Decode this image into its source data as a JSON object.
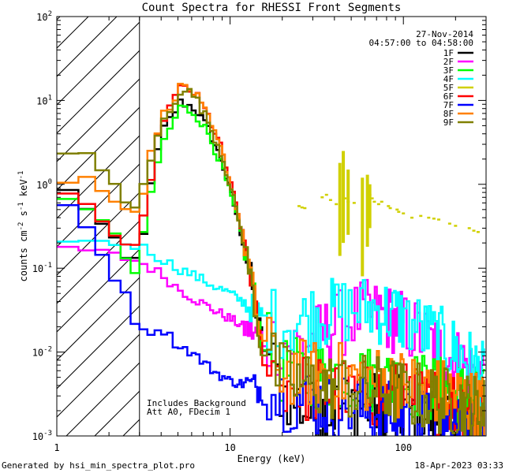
{
  "chart_data": {
    "type": "line",
    "title": "Count Spectra for RHESSI Front Segments",
    "xlabel": "Energy (keV)",
    "ylabel_parts": [
      "counts cm",
      "-2",
      " s",
      "-1",
      " keV",
      "-1"
    ],
    "xscale": "log",
    "yscale": "log",
    "xlim": [
      1,
      300
    ],
    "ylim": [
      0.001,
      100
    ],
    "x_ticks": [
      1,
      10,
      100
    ],
    "x_tick_labels": [
      "1",
      "10",
      "100"
    ],
    "y_ticks": [
      0.001,
      0.01,
      0.1,
      1,
      10,
      100
    ],
    "y_tick_labels": [
      {
        "base": "10",
        "exp": "-3"
      },
      {
        "base": "10",
        "exp": "-2"
      },
      {
        "base": "10",
        "exp": "-1"
      },
      {
        "base": "10",
        "exp": "0"
      },
      {
        "base": "10",
        "exp": "1"
      },
      {
        "base": "10",
        "exp": "2"
      }
    ],
    "hatched_region_kev": [
      1,
      3
    ],
    "date": "27-Nov-2014",
    "time_range": "04:57:00 to 04:58:00",
    "legend_position": "top-right",
    "annotations": [
      "Includes Background",
      "Att A0, FDecim 1"
    ],
    "footer_left": "Generated by hsi_min_spectra_plot.pro",
    "footer_right": "18-Apr-2023 03:33",
    "series": [
      {
        "name": "1F",
        "color": "#000000",
        "anchors": [
          [
            1.2,
            0.82
          ],
          [
            1.5,
            0.53
          ],
          [
            2.0,
            0.26
          ],
          [
            2.6,
            0.11
          ],
          [
            3.0,
            0.14
          ],
          [
            3.3,
            0.5
          ],
          [
            4.0,
            4.0
          ],
          [
            5.2,
            9.7
          ],
          [
            6.3,
            8.0
          ],
          [
            7.5,
            4.5
          ],
          [
            9,
            1.8
          ],
          [
            11,
            0.4
          ],
          [
            13,
            0.09
          ],
          [
            15,
            0.016
          ],
          [
            20,
            0.0035
          ],
          [
            30,
            0.0018
          ],
          [
            50,
            0.0024
          ],
          [
            80,
            0.0022
          ],
          [
            120,
            0.0018
          ],
          [
            200,
            0.0015
          ],
          [
            280,
            0.0012
          ]
        ]
      },
      {
        "name": "2F",
        "color": "#ff00ff",
        "anchors": [
          [
            1.2,
            0.17
          ],
          [
            1.6,
            0.16
          ],
          [
            2.2,
            0.14
          ],
          [
            3.0,
            0.12
          ],
          [
            4.0,
            0.085
          ],
          [
            5,
            0.058
          ],
          [
            6,
            0.045
          ],
          [
            8,
            0.032
          ],
          [
            10,
            0.025
          ],
          [
            13,
            0.018
          ],
          [
            16,
            0.014
          ],
          [
            20,
            0.013
          ],
          [
            25,
            0.012
          ],
          [
            30,
            0.014
          ],
          [
            40,
            0.02
          ],
          [
            55,
            0.028
          ],
          [
            70,
            0.028
          ],
          [
            90,
            0.024
          ],
          [
            120,
            0.017
          ],
          [
            160,
            0.011
          ],
          [
            220,
            0.007
          ],
          [
            290,
            0.004
          ]
        ]
      },
      {
        "name": "3F",
        "color": "#00ff00",
        "anchors": [
          [
            1.2,
            0.72
          ],
          [
            1.6,
            0.5
          ],
          [
            2.2,
            0.22
          ],
          [
            2.8,
            0.085
          ],
          [
            3.0,
            0.11
          ],
          [
            3.3,
            0.45
          ],
          [
            4.0,
            2.8
          ],
          [
            5.2,
            8.5
          ],
          [
            6.3,
            7.0
          ],
          [
            7.5,
            4.0
          ],
          [
            9,
            1.6
          ],
          [
            11,
            0.38
          ],
          [
            13,
            0.1
          ],
          [
            15,
            0.017
          ],
          [
            20,
            0.006
          ],
          [
            30,
            0.0055
          ],
          [
            50,
            0.005
          ],
          [
            80,
            0.0045
          ],
          [
            120,
            0.004
          ],
          [
            200,
            0.0032
          ],
          [
            290,
            0.0025
          ]
        ]
      },
      {
        "name": "4F",
        "color": "#00ffff",
        "anchors": [
          [
            1.2,
            0.23
          ],
          [
            1.6,
            0.2
          ],
          [
            2.2,
            0.2
          ],
          [
            3.0,
            0.185
          ],
          [
            4,
            0.13
          ],
          [
            5,
            0.1
          ],
          [
            6,
            0.085
          ],
          [
            8,
            0.062
          ],
          [
            10,
            0.05
          ],
          [
            13,
            0.035
          ],
          [
            16,
            0.025
          ],
          [
            20,
            0.022
          ],
          [
            25,
            0.023
          ],
          [
            30,
            0.027
          ],
          [
            40,
            0.03
          ],
          [
            55,
            0.033
          ],
          [
            70,
            0.032
          ],
          [
            90,
            0.028
          ],
          [
            120,
            0.02
          ],
          [
            160,
            0.014
          ],
          [
            220,
            0.009
          ],
          [
            290,
            0.005
          ]
        ]
      },
      {
        "name": "6F",
        "color": "#ff0000",
        "anchors": [
          [
            1.2,
            0.85
          ],
          [
            1.5,
            0.55
          ],
          [
            2.0,
            0.3
          ],
          [
            2.6,
            0.15
          ],
          [
            3.0,
            0.18
          ],
          [
            3.3,
            0.7
          ],
          [
            4.0,
            5.5
          ],
          [
            5.3,
            15.0
          ],
          [
            6.3,
            12.0
          ],
          [
            7.5,
            6.5
          ],
          [
            9,
            2.5
          ],
          [
            11,
            0.5
          ],
          [
            13,
            0.1
          ],
          [
            15,
            0.012
          ],
          [
            20,
            0.0045
          ],
          [
            30,
            0.0035
          ],
          [
            50,
            0.0032
          ],
          [
            80,
            0.003
          ],
          [
            120,
            0.0028
          ],
          [
            200,
            0.0025
          ],
          [
            290,
            0.0018
          ]
        ]
      },
      {
        "name": "7F",
        "color": "#0000ff",
        "anchors": [
          [
            1.2,
            0.5
          ],
          [
            1.5,
            0.3
          ],
          [
            2.0,
            0.1
          ],
          [
            2.6,
            0.045
          ],
          [
            3.0,
            0.016
          ],
          [
            4.0,
            0.02
          ],
          [
            5,
            0.012
          ],
          [
            6,
            0.01
          ],
          [
            8,
            0.006
          ],
          [
            10,
            0.0045
          ],
          [
            13,
            0.004
          ],
          [
            16,
            0.0035
          ],
          [
            20,
            0.003
          ],
          [
            30,
            0.0025
          ],
          [
            50,
            0.0022
          ],
          [
            80,
            0.0018
          ],
          [
            120,
            0.0015
          ],
          [
            200,
            0.0012
          ],
          [
            290,
            0.001
          ]
        ]
      },
      {
        "name": "8F",
        "color": "#ff8000",
        "anchors": [
          [
            1.2,
            1.0
          ],
          [
            1.5,
            1.2
          ],
          [
            2.0,
            0.8
          ],
          [
            2.6,
            0.5
          ],
          [
            3.0,
            0.45
          ],
          [
            3.3,
            1.5
          ],
          [
            4.0,
            6.0
          ],
          [
            5.3,
            15.5
          ],
          [
            6.3,
            12.0
          ],
          [
            7.5,
            6.0
          ],
          [
            9,
            2.4
          ],
          [
            11,
            0.5
          ],
          [
            13,
            0.1
          ],
          [
            15,
            0.015
          ],
          [
            20,
            0.006
          ],
          [
            30,
            0.0055
          ],
          [
            50,
            0.005
          ],
          [
            80,
            0.0045
          ],
          [
            120,
            0.004
          ],
          [
            200,
            0.003
          ],
          [
            290,
            0.0022
          ]
        ]
      },
      {
        "name": "9F",
        "color": "#808000",
        "anchors": [
          [
            1.2,
            2.3
          ],
          [
            1.5,
            2.1
          ],
          [
            2.0,
            1.2
          ],
          [
            2.6,
            0.55
          ],
          [
            3.0,
            0.6
          ],
          [
            3.3,
            1.3
          ],
          [
            4.0,
            5.0
          ],
          [
            5.3,
            14.5
          ],
          [
            6.3,
            11.0
          ],
          [
            7.5,
            5.5
          ],
          [
            9,
            2.2
          ],
          [
            11,
            0.45
          ],
          [
            13,
            0.09
          ],
          [
            15,
            0.012
          ],
          [
            20,
            0.005
          ],
          [
            30,
            0.004
          ],
          [
            50,
            0.0038
          ],
          [
            80,
            0.0035
          ],
          [
            120,
            0.003
          ],
          [
            200,
            0.0025
          ],
          [
            290,
            0.002
          ]
        ]
      },
      {
        "name": "5F",
        "color": "#d0d000",
        "style": "segments",
        "points": [
          [
            25,
            0.55
          ],
          [
            26,
            0.53
          ],
          [
            27,
            0.52
          ],
          [
            34,
            0.7
          ],
          [
            36,
            0.75
          ],
          [
            38,
            0.65
          ],
          [
            41,
            0.58
          ],
          [
            46,
            0.68
          ],
          [
            48,
            0.62
          ],
          [
            52,
            0.6
          ],
          [
            64,
            0.75
          ],
          [
            66,
            0.68
          ],
          [
            68,
            0.62
          ],
          [
            72,
            0.58
          ],
          [
            75,
            0.62
          ],
          [
            82,
            0.55
          ],
          [
            84,
            0.52
          ],
          [
            92,
            0.5
          ],
          [
            94,
            0.47
          ],
          [
            100,
            0.45
          ],
          [
            112,
            0.4
          ],
          [
            126,
            0.42
          ],
          [
            140,
            0.4
          ],
          [
            150,
            0.39
          ],
          [
            160,
            0.38
          ],
          [
            185,
            0.34
          ],
          [
            200,
            0.32
          ],
          [
            240,
            0.3
          ],
          [
            255,
            0.28
          ],
          [
            270,
            0.27
          ]
        ],
        "spikes": [
          [
            43,
            0.14,
            1.8
          ],
          [
            45,
            0.2,
            2.5
          ],
          [
            48,
            0.25,
            1.5
          ],
          [
            58,
            0.08,
            1.2
          ],
          [
            62,
            0.18,
            1.3
          ],
          [
            64,
            0.3,
            1.0
          ]
        ]
      }
    ]
  }
}
